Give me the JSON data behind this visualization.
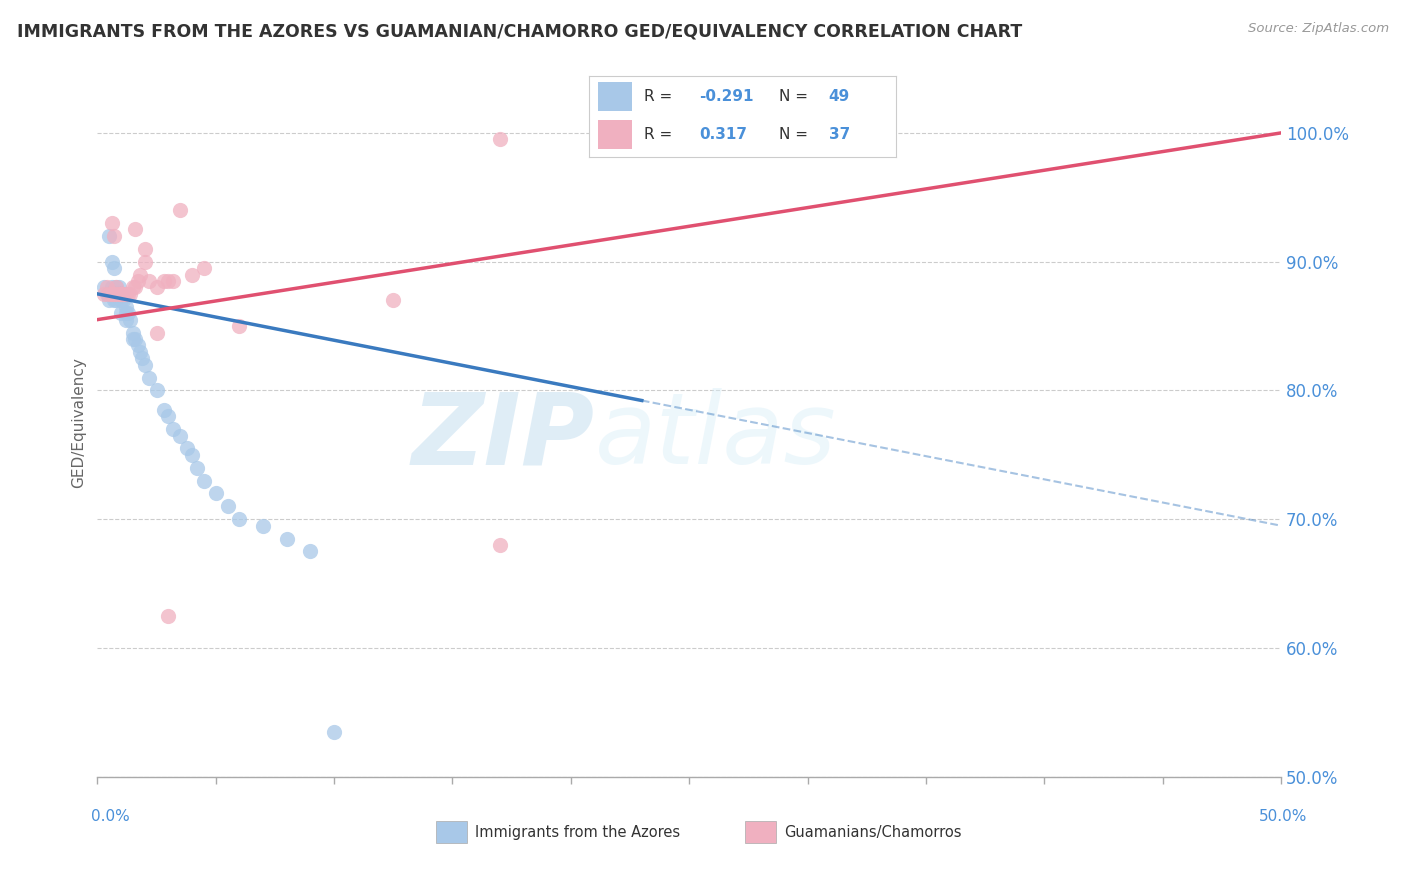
{
  "title": "IMMIGRANTS FROM THE AZORES VS GUAMANIAN/CHAMORRO GED/EQUIVALENCY CORRELATION CHART",
  "source": "Source: ZipAtlas.com",
  "ylabel": "GED/Equivalency",
  "y_ticks": [
    "100.0%",
    "90.0%",
    "80.0%",
    "70.0%",
    "60.0%",
    "50.0%"
  ],
  "y_tick_vals": [
    1.0,
    0.9,
    0.8,
    0.7,
    0.6,
    0.5
  ],
  "xlim": [
    0.0,
    0.5
  ],
  "ylim": [
    0.5,
    1.05
  ],
  "blue_R": -0.291,
  "blue_N": 49,
  "pink_R": 0.317,
  "pink_N": 37,
  "blue_color": "#a8c8e8",
  "pink_color": "#f0b0c0",
  "blue_line_color": "#3a7abf",
  "pink_line_color": "#e05070",
  "watermark_zip": "ZIP",
  "watermark_atlas": "atlas",
  "legend_label_blue": "Immigrants from the Azores",
  "legend_label_pink": "Guamanians/Chamorros",
  "blue_scatter_x": [
    0.003,
    0.004,
    0.005,
    0.005,
    0.005,
    0.006,
    0.006,
    0.006,
    0.007,
    0.007,
    0.007,
    0.008,
    0.008,
    0.008,
    0.009,
    0.009,
    0.01,
    0.01,
    0.01,
    0.011,
    0.012,
    0.012,
    0.012,
    0.013,
    0.014,
    0.015,
    0.015,
    0.016,
    0.017,
    0.018,
    0.019,
    0.02,
    0.022,
    0.025,
    0.028,
    0.03,
    0.032,
    0.035,
    0.038,
    0.04,
    0.042,
    0.045,
    0.05,
    0.055,
    0.06,
    0.07,
    0.08,
    0.09,
    0.1
  ],
  "blue_scatter_y": [
    0.88,
    0.875,
    0.92,
    0.87,
    0.875,
    0.9,
    0.88,
    0.875,
    0.895,
    0.875,
    0.87,
    0.88,
    0.875,
    0.87,
    0.88,
    0.875,
    0.875,
    0.87,
    0.86,
    0.87,
    0.865,
    0.86,
    0.855,
    0.86,
    0.855,
    0.845,
    0.84,
    0.84,
    0.835,
    0.83,
    0.825,
    0.82,
    0.81,
    0.8,
    0.785,
    0.78,
    0.77,
    0.765,
    0.755,
    0.75,
    0.74,
    0.73,
    0.72,
    0.71,
    0.7,
    0.695,
    0.685,
    0.675,
    0.535
  ],
  "pink_scatter_x": [
    0.003,
    0.004,
    0.005,
    0.006,
    0.006,
    0.007,
    0.007,
    0.008,
    0.008,
    0.009,
    0.01,
    0.01,
    0.011,
    0.012,
    0.013,
    0.014,
    0.015,
    0.016,
    0.016,
    0.017,
    0.018,
    0.02,
    0.02,
    0.022,
    0.025,
    0.028,
    0.03,
    0.032,
    0.035,
    0.04,
    0.045,
    0.17,
    0.17,
    0.025,
    0.03,
    0.06,
    0.125
  ],
  "pink_scatter_y": [
    0.875,
    0.88,
    0.875,
    0.93,
    0.875,
    0.92,
    0.875,
    0.88,
    0.875,
    0.875,
    0.875,
    0.875,
    0.875,
    0.875,
    0.875,
    0.875,
    0.88,
    0.88,
    0.925,
    0.885,
    0.89,
    0.91,
    0.9,
    0.885,
    0.88,
    0.885,
    0.885,
    0.885,
    0.94,
    0.89,
    0.895,
    0.995,
    0.68,
    0.845,
    0.625,
    0.85,
    0.87
  ],
  "blue_line_x": [
    0.0,
    0.5
  ],
  "blue_line_y": [
    0.875,
    0.695
  ],
  "blue_line_solid_end": 0.23,
  "pink_line_x": [
    0.0,
    0.5
  ],
  "pink_line_y": [
    0.855,
    1.0
  ],
  "grid_color": "#cccccc",
  "title_color": "#333333",
  "axis_label_color": "#4a90d9",
  "background_color": "#ffffff"
}
